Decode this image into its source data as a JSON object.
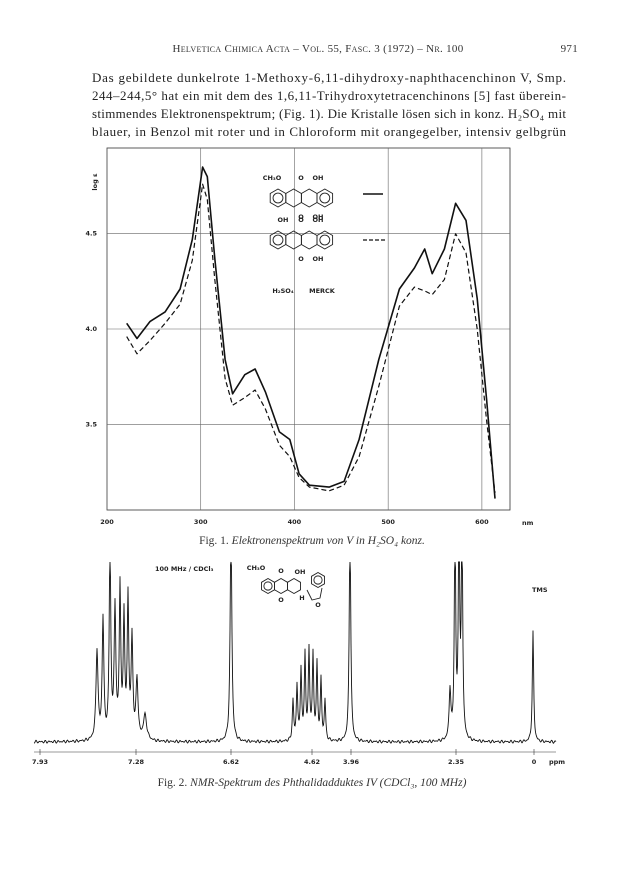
{
  "header": {
    "running_title": "Helvetica Chimica Acta – Vol. 55, Fasc. 3 (1972) – Nr. 100",
    "page_number": "971"
  },
  "paragraph": [
    "Das gebildete dunkelrote 1-Methoxy-6,11-dihydroxy-naphthacenchinon V, Smp.",
    "244–244,5° hat ein mit dem des 1,6,11-Trihydroxytetracenchinons [5] fast überein-",
    "stimmendes Elektronenspektrum; (Fig. 1). Die Kristalle lösen sich in konz. H₂SO₄ mit",
    "blauer, in Benzol mit roter und in Chloroform mit orangegelber, intensiv gelbgrün"
  ],
  "chart_data": {
    "type": "line",
    "x_label": "nm",
    "y_label": "log ε",
    "xlim": [
      200,
      630
    ],
    "ylim": [
      3.05,
      4.95
    ],
    "xticks": [
      200,
      300,
      400,
      500,
      600
    ],
    "yticks": [
      3.5,
      {
        "value": 4.0,
        "label": "4.0"
      },
      4.5
    ],
    "grid": true,
    "x": [
      221,
      232,
      246,
      262,
      278,
      291,
      302,
      307,
      315,
      326,
      334,
      347,
      358,
      369,
      384,
      395,
      405,
      416,
      437,
      453,
      469,
      490,
      512,
      528,
      539,
      547,
      560,
      572,
      583,
      595,
      605,
      614
    ],
    "series": [
      {
        "color": "#111111",
        "dashed": false,
        "values": [
          4.03,
          3.95,
          4.04,
          4.09,
          4.21,
          4.47,
          4.85,
          4.8,
          4.37,
          3.84,
          3.66,
          3.76,
          3.79,
          3.67,
          3.46,
          3.42,
          3.24,
          3.18,
          3.17,
          3.2,
          3.42,
          3.84,
          4.21,
          4.32,
          4.42,
          4.29,
          4.42,
          4.66,
          4.57,
          4.16,
          3.63,
          3.11
        ]
      },
      {
        "color": "#111111",
        "dashed": true,
        "values": [
          3.96,
          3.87,
          3.94,
          4.03,
          4.13,
          4.36,
          4.76,
          4.68,
          4.26,
          3.74,
          3.6,
          3.64,
          3.68,
          3.58,
          3.39,
          3.33,
          3.22,
          3.17,
          3.15,
          3.18,
          3.33,
          3.7,
          4.12,
          4.22,
          4.2,
          4.18,
          4.26,
          4.5,
          4.4,
          4.0,
          3.52,
          3.14
        ]
      }
    ],
    "annotations": {
      "s1_ch3o": "CH₃O",
      "s1_o_top": "O",
      "s1_oh_top": "OH",
      "s1_o_bot": "O",
      "s1_oh_bot": "OH",
      "s2_oh_left": "OH",
      "s2_o_top": "O",
      "s2_oh_top": "OH",
      "s2_o_bot": "O",
      "s2_oh_bot": "OH",
      "solvent": "H₂SO₄",
      "supplier": "MERCK"
    }
  },
  "figure1_caption": {
    "label": "Fig. 1.",
    "text": "Elektronenspektrum von V in H₂SO₄ konz."
  },
  "figure2": {
    "conditions": "100 MHz / CDCl₃",
    "reference": "TMS",
    "axis_labels": [
      "7.93",
      "7.28",
      "6.62",
      "4.62",
      "3.96",
      "2.35",
      "0",
      "ppm"
    ],
    "structure_labels": [
      "CH₃O",
      "O",
      "OH",
      "O",
      "H",
      "O"
    ]
  },
  "figure2_caption": {
    "label": "Fig. 2.",
    "text": "NMR-Spektrum des Phthalidadduktes IV (CDCl₃, 100 MHz)"
  }
}
